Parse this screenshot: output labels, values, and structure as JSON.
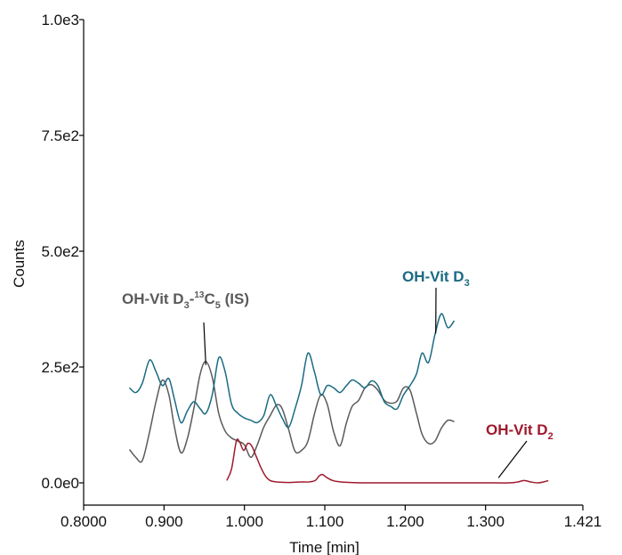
{
  "chart_data": {
    "type": "line",
    "xlabel": "Time [min]",
    "ylabel": "Counts",
    "xlim": [
      0.8,
      1.421
    ],
    "ylim": [
      -50,
      1000
    ],
    "x_ticks": [
      0.8,
      0.9,
      1.0,
      1.1,
      1.2,
      1.3,
      1.421
    ],
    "x_tick_labels": [
      "0.8000",
      "0.900",
      "1.000",
      "1.100",
      "1.200",
      "1.300",
      "1.421"
    ],
    "y_ticks": [
      0,
      250,
      500,
      750,
      1000
    ],
    "y_tick_labels": [
      "0.0e0",
      "2.5e2",
      "5.0e2",
      "7.5e2",
      "1.0e3"
    ],
    "grid": false,
    "series": [
      {
        "key": "is",
        "color": "#5a5a5a",
        "x": [
          0.857,
          0.865,
          0.873,
          0.882,
          0.89,
          0.898,
          0.906,
          0.913,
          0.921,
          0.929,
          0.937,
          0.945,
          0.952,
          0.96,
          0.968,
          0.976,
          0.984,
          0.992,
          1.0,
          1.008,
          1.016,
          1.024,
          1.032,
          1.04,
          1.047,
          1.055,
          1.063,
          1.071,
          1.079,
          1.087,
          1.095,
          1.103,
          1.111,
          1.119,
          1.127,
          1.134,
          1.142,
          1.15,
          1.158,
          1.166,
          1.174,
          1.182,
          1.19,
          1.198,
          1.206,
          1.214,
          1.221,
          1.229,
          1.237,
          1.245,
          1.253,
          1.261
        ],
        "values": [
          72,
          55,
          48,
          110,
          175,
          222,
          190,
          120,
          65,
          95,
          160,
          235,
          262,
          228,
          150,
          112,
          97,
          90,
          82,
          55,
          82,
          120,
          145,
          168,
          160,
          115,
          68,
          70,
          90,
          148,
          190,
          170,
          110,
          80,
          130,
          165,
          178,
          205,
          212,
          200,
          178,
          172,
          177,
          205,
          200,
          150,
          105,
          85,
          90,
          118,
          135,
          132
        ]
      },
      {
        "key": "d3",
        "name": "OH-Vit D3",
        "color": "#1a6b82",
        "x": [
          0.857,
          0.865,
          0.873,
          0.882,
          0.89,
          0.898,
          0.906,
          0.913,
          0.921,
          0.929,
          0.937,
          0.945,
          0.952,
          0.96,
          0.968,
          0.976,
          0.984,
          0.992,
          1.0,
          1.008,
          1.016,
          1.024,
          1.032,
          1.04,
          1.047,
          1.055,
          1.063,
          1.071,
          1.079,
          1.087,
          1.095,
          1.103,
          1.111,
          1.119,
          1.127,
          1.134,
          1.142,
          1.15,
          1.158,
          1.166,
          1.174,
          1.182,
          1.19,
          1.198,
          1.206,
          1.214,
          1.221,
          1.229,
          1.237,
          1.245,
          1.253,
          1.261
        ],
        "values": [
          205,
          195,
          215,
          265,
          240,
          210,
          225,
          180,
          130,
          155,
          175,
          160,
          150,
          190,
          270,
          240,
          170,
          150,
          140,
          135,
          130,
          145,
          190,
          165,
          140,
          120,
          160,
          210,
          280,
          240,
          190,
          210,
          205,
          195,
          210,
          222,
          215,
          205,
          220,
          210,
          175,
          165,
          160,
          190,
          210,
          235,
          280,
          260,
          320,
          365,
          335,
          350
        ]
      },
      {
        "key": "d2",
        "name": "OH-Vit D2",
        "color": "#9e1a2e",
        "x": [
          0.978,
          0.984,
          0.99,
          0.994,
          0.999,
          1.004,
          1.009,
          1.014,
          1.02,
          1.026,
          1.032,
          1.04,
          1.05,
          1.06,
          1.07,
          1.08,
          1.088,
          1.093,
          1.097,
          1.102,
          1.11,
          1.12,
          1.13,
          1.15,
          1.2,
          1.25,
          1.3,
          1.33,
          1.34,
          1.348,
          1.356,
          1.365,
          1.372,
          1.378
        ],
        "values": [
          5,
          30,
          90,
          88,
          70,
          85,
          80,
          60,
          35,
          15,
          5,
          2,
          1,
          1,
          2,
          2,
          5,
          15,
          18,
          12,
          5,
          2,
          1,
          0,
          0,
          0,
          0,
          0,
          2,
          5,
          2,
          0,
          2,
          5
        ]
      }
    ],
    "annotations": [
      {
        "key": "is",
        "prefix": "OH-Vit D",
        "sub1": "3",
        "mid": "-",
        "sup": "13",
        "tail": "C",
        "sub2": "5",
        "suffix": " (IS)",
        "color": "#5a5a5a",
        "pointer_x": 0.952,
        "pointer_y": 262
      },
      {
        "key": "d3",
        "prefix": "OH-Vit D",
        "sub1": "3",
        "color": "#1a6b82",
        "pointer_x": 1.238,
        "pointer_y": 330
      },
      {
        "key": "d2",
        "prefix": "OH-Vit D",
        "sub1": "2",
        "color": "#9e1a2e",
        "pointer_x": 1.316,
        "pointer_y": 5
      }
    ]
  }
}
